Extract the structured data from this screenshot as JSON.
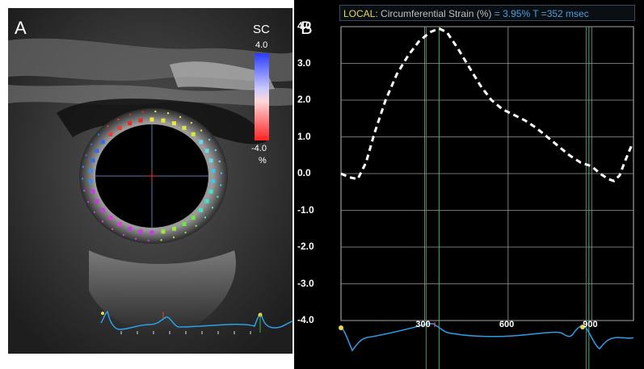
{
  "panel_a": {
    "letter": "A",
    "scale": {
      "title": "SC",
      "max": "4.0",
      "min": "-4.0",
      "unit": "%",
      "top_color": "#2a3cff",
      "bottom_color": "#ff2222"
    }
  },
  "panel_b": {
    "letter": "B",
    "header": {
      "local_label": "LOCAL:",
      "metric_label": "Circumferential Strain (%)",
      "value_text": "= 3.95% T =352 msec",
      "local_color": "#e8d84a",
      "value_color": "#4aa0e0"
    }
  },
  "chart_data": {
    "type": "line",
    "title": "LOCAL: Circumferential Strain (%)",
    "xlabel": "",
    "ylabel": "",
    "yticks": [
      "4.0",
      "3.0",
      "2.0",
      "1.0",
      "0.0",
      "-1.0",
      "-2.0",
      "-3.0",
      "-4.0"
    ],
    "xticks": [
      "300",
      "600",
      "900"
    ],
    "ylim": [
      -4.0,
      4.0
    ],
    "xlim": [
      0,
      1050
    ],
    "grid": true,
    "series": [
      {
        "x": [
          0,
          30,
          60,
          90,
          120,
          160,
          200,
          240,
          280,
          320,
          352,
          380,
          420,
          460,
          500,
          540,
          580,
          620,
          660,
          700,
          740,
          780,
          820,
          860,
          900,
          930,
          960,
          980,
          1000,
          1020,
          1045
        ],
        "values": [
          0.0,
          -0.1,
          -0.15,
          0.3,
          1.1,
          2.0,
          2.7,
          3.2,
          3.6,
          3.85,
          3.95,
          3.85,
          3.4,
          2.9,
          2.4,
          2.0,
          1.75,
          1.6,
          1.45,
          1.25,
          1.0,
          0.75,
          0.5,
          0.3,
          0.2,
          0.0,
          -0.15,
          -0.2,
          -0.05,
          0.35,
          0.8
        ]
      }
    ],
    "markers": {
      "time_ms": 352,
      "value": "3.95%"
    }
  }
}
